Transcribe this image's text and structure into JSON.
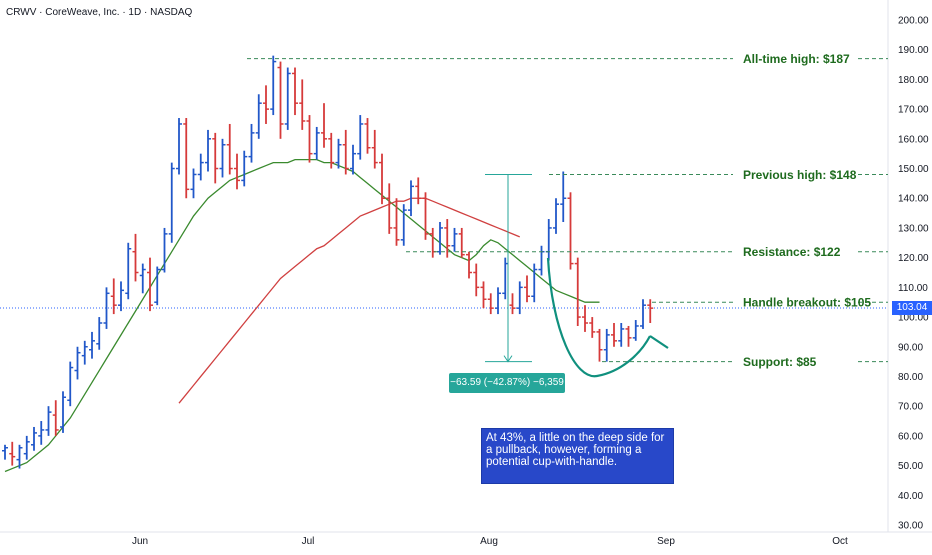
{
  "header": {
    "title": "CRWV · CoreWeave, Inc. · 1D · NASDAQ"
  },
  "colors": {
    "bar_up": "#2157c9",
    "bar_down": "#d63a3a",
    "ma_fast": "#3a8a2e",
    "ma_slow": "#d04040",
    "cup": "#10907e",
    "annotation_text": "#1e6b1e",
    "guide_dashed": "#3a8a5a",
    "last_price": "#2962ff",
    "measure": "#26a69a",
    "note_bg": "#2848c9"
  },
  "chart_data": {
    "type": "ohlc",
    "x_axis": {
      "labels": [
        "Jun",
        "Jul",
        "Aug",
        "Sep",
        "Oct"
      ]
    },
    "y_axis": {
      "range": [
        30,
        200
      ],
      "ticks": [
        "200.00",
        "190.00",
        "180.00",
        "170.00",
        "160.00",
        "150.00",
        "140.00",
        "130.00",
        "120.00",
        "110.00",
        "100.00",
        "90.00",
        "80.00",
        "70.00",
        "60.00",
        "50.00",
        "40.00",
        "30.00"
      ]
    },
    "last_price": {
      "value": 103.04,
      "label": "103.04"
    },
    "bars": [
      {
        "o": 55,
        "h": 57,
        "l": 52,
        "c": 56
      },
      {
        "o": 54,
        "h": 58,
        "l": 50,
        "c": 53
      },
      {
        "o": 52,
        "h": 57,
        "l": 49,
        "c": 56
      },
      {
        "o": 54,
        "h": 60,
        "l": 52,
        "c": 58
      },
      {
        "o": 57,
        "h": 63,
        "l": 55,
        "c": 61
      },
      {
        "o": 60,
        "h": 65,
        "l": 57,
        "c": 62
      },
      {
        "o": 62,
        "h": 70,
        "l": 60,
        "c": 68
      },
      {
        "o": 67,
        "h": 72,
        "l": 60,
        "c": 62
      },
      {
        "o": 63,
        "h": 75,
        "l": 61,
        "c": 73
      },
      {
        "o": 72,
        "h": 85,
        "l": 70,
        "c": 83
      },
      {
        "o": 82,
        "h": 90,
        "l": 79,
        "c": 88
      },
      {
        "o": 87,
        "h": 92,
        "l": 84,
        "c": 90
      },
      {
        "o": 89,
        "h": 95,
        "l": 86,
        "c": 92
      },
      {
        "o": 91,
        "h": 100,
        "l": 89,
        "c": 98
      },
      {
        "o": 98,
        "h": 110,
        "l": 96,
        "c": 108
      },
      {
        "o": 107,
        "h": 113,
        "l": 101,
        "c": 104
      },
      {
        "o": 104,
        "h": 112,
        "l": 102,
        "c": 109
      },
      {
        "o": 108,
        "h": 125,
        "l": 106,
        "c": 123
      },
      {
        "o": 122,
        "h": 128,
        "l": 112,
        "c": 115
      },
      {
        "o": 114,
        "h": 118,
        "l": 108,
        "c": 116
      },
      {
        "o": 115,
        "h": 120,
        "l": 102,
        "c": 104
      },
      {
        "o": 105,
        "h": 117,
        "l": 104,
        "c": 116
      },
      {
        "o": 116,
        "h": 130,
        "l": 115,
        "c": 128
      },
      {
        "o": 128,
        "h": 152,
        "l": 125,
        "c": 150
      },
      {
        "o": 150,
        "h": 167,
        "l": 148,
        "c": 165
      },
      {
        "o": 165,
        "h": 167,
        "l": 140,
        "c": 143
      },
      {
        "o": 143,
        "h": 150,
        "l": 140,
        "c": 148
      },
      {
        "o": 148,
        "h": 155,
        "l": 146,
        "c": 152
      },
      {
        "o": 152,
        "h": 163,
        "l": 149,
        "c": 160
      },
      {
        "o": 160,
        "h": 162,
        "l": 145,
        "c": 150
      },
      {
        "o": 150,
        "h": 160,
        "l": 147,
        "c": 158
      },
      {
        "o": 158,
        "h": 165,
        "l": 148,
        "c": 150
      },
      {
        "o": 150,
        "h": 155,
        "l": 143,
        "c": 146
      },
      {
        "o": 146,
        "h": 156,
        "l": 144,
        "c": 154
      },
      {
        "o": 154,
        "h": 165,
        "l": 152,
        "c": 162
      },
      {
        "o": 162,
        "h": 175,
        "l": 160,
        "c": 172
      },
      {
        "o": 172,
        "h": 178,
        "l": 165,
        "c": 170
      },
      {
        "o": 170,
        "h": 188,
        "l": 168,
        "c": 186
      },
      {
        "o": 184,
        "h": 186,
        "l": 160,
        "c": 165
      },
      {
        "o": 165,
        "h": 184,
        "l": 163,
        "c": 182
      },
      {
        "o": 182,
        "h": 184,
        "l": 168,
        "c": 172
      },
      {
        "o": 172,
        "h": 180,
        "l": 163,
        "c": 166
      },
      {
        "o": 166,
        "h": 168,
        "l": 152,
        "c": 155
      },
      {
        "o": 155,
        "h": 164,
        "l": 153,
        "c": 162
      },
      {
        "o": 162,
        "h": 172,
        "l": 157,
        "c": 160
      },
      {
        "o": 160,
        "h": 162,
        "l": 150,
        "c": 152
      },
      {
        "o": 152,
        "h": 160,
        "l": 150,
        "c": 158
      },
      {
        "o": 158,
        "h": 163,
        "l": 148,
        "c": 150
      },
      {
        "o": 150,
        "h": 158,
        "l": 148,
        "c": 155
      },
      {
        "o": 155,
        "h": 168,
        "l": 153,
        "c": 165
      },
      {
        "o": 165,
        "h": 167,
        "l": 155,
        "c": 157
      },
      {
        "o": 157,
        "h": 163,
        "l": 150,
        "c": 152
      },
      {
        "o": 152,
        "h": 155,
        "l": 138,
        "c": 140
      },
      {
        "o": 140,
        "h": 145,
        "l": 128,
        "c": 130
      },
      {
        "o": 130,
        "h": 140,
        "l": 124,
        "c": 126
      },
      {
        "o": 126,
        "h": 138,
        "l": 124,
        "c": 136
      },
      {
        "o": 136,
        "h": 146,
        "l": 134,
        "c": 144
      },
      {
        "o": 144,
        "h": 147,
        "l": 138,
        "c": 140
      },
      {
        "o": 140,
        "h": 142,
        "l": 126,
        "c": 128
      },
      {
        "o": 128,
        "h": 130,
        "l": 120,
        "c": 122
      },
      {
        "o": 122,
        "h": 132,
        "l": 121,
        "c": 130
      },
      {
        "o": 130,
        "h": 133,
        "l": 120,
        "c": 124
      },
      {
        "o": 124,
        "h": 130,
        "l": 122,
        "c": 128
      },
      {
        "o": 128,
        "h": 130,
        "l": 120,
        "c": 121
      },
      {
        "o": 121,
        "h": 122,
        "l": 113,
        "c": 115
      },
      {
        "o": 115,
        "h": 118,
        "l": 107,
        "c": 110
      },
      {
        "o": 110,
        "h": 112,
        "l": 103,
        "c": 106
      },
      {
        "o": 106,
        "h": 108,
        "l": 101,
        "c": 103
      },
      {
        "o": 103,
        "h": 110,
        "l": 101,
        "c": 108
      },
      {
        "o": 108,
        "h": 120,
        "l": 106,
        "c": 118
      },
      {
        "o": 104,
        "h": 108,
        "l": 101,
        "c": 103
      },
      {
        "o": 103,
        "h": 112,
        "l": 101,
        "c": 110
      },
      {
        "o": 110,
        "h": 114,
        "l": 105,
        "c": 107
      },
      {
        "o": 107,
        "h": 118,
        "l": 105,
        "c": 116
      },
      {
        "o": 116,
        "h": 124,
        "l": 114,
        "c": 122
      },
      {
        "o": 122,
        "h": 133,
        "l": 119,
        "c": 130
      },
      {
        "o": 130,
        "h": 140,
        "l": 128,
        "c": 138
      },
      {
        "o": 138,
        "h": 149,
        "l": 132,
        "c": 140
      },
      {
        "o": 140,
        "h": 142,
        "l": 116,
        "c": 118
      },
      {
        "o": 118,
        "h": 120,
        "l": 97,
        "c": 100
      },
      {
        "o": 100,
        "h": 104,
        "l": 95,
        "c": 98
      },
      {
        "o": 98,
        "h": 100,
        "l": 93,
        "c": 95
      },
      {
        "o": 95,
        "h": 96,
        "l": 85,
        "c": 89
      },
      {
        "o": 89,
        "h": 96,
        "l": 85,
        "c": 94
      },
      {
        "o": 94,
        "h": 98,
        "l": 90,
        "c": 92
      },
      {
        "o": 92,
        "h": 98,
        "l": 90,
        "c": 96
      },
      {
        "o": 96,
        "h": 97,
        "l": 90,
        "c": 93
      },
      {
        "o": 93,
        "h": 99,
        "l": 92,
        "c": 97
      },
      {
        "o": 97,
        "h": 106,
        "l": 96,
        "c": 104
      },
      {
        "o": 104,
        "h": 106,
        "l": 98,
        "c": 103
      }
    ],
    "ma_fast": [
      48,
      49,
      50,
      51,
      53,
      55,
      57,
      60,
      63,
      66,
      70,
      74,
      78,
      82,
      86,
      90,
      94,
      98,
      102,
      106,
      110,
      114,
      118,
      122,
      126,
      130,
      134,
      137,
      140,
      142,
      144,
      146,
      147,
      148,
      149,
      150,
      151,
      152,
      152,
      152,
      153,
      153,
      153,
      153,
      152,
      152,
      151,
      150,
      149,
      147,
      145,
      143,
      141,
      139,
      137,
      135,
      133,
      131,
      129,
      127,
      125,
      123,
      121,
      120,
      119,
      121,
      124,
      126,
      125,
      123,
      121,
      119,
      117,
      115,
      113,
      111,
      109,
      108,
      107,
      106,
      105,
      105,
      105
    ],
    "ma_slow": [
      71,
      74,
      77,
      80,
      83,
      86,
      89,
      92,
      95,
      98,
      101,
      104,
      107,
      110,
      113,
      115,
      117,
      119,
      121,
      123,
      124,
      126,
      128,
      130,
      132,
      134,
      135,
      136,
      137,
      138,
      139,
      139,
      140,
      140,
      140,
      139,
      138,
      137,
      136,
      135,
      134,
      133,
      132,
      131,
      130,
      129,
      128,
      127
    ],
    "annotations": [
      {
        "label": "All-time high: $187",
        "value": 187
      },
      {
        "label": "Previous high: $148",
        "value": 148
      },
      {
        "label": "Resistance: $122",
        "value": 122
      },
      {
        "label": "Handle breakout: $105",
        "value": 105
      },
      {
        "label": "Support: $85",
        "value": 85
      }
    ],
    "measure": {
      "from": 148,
      "to": 85,
      "label": "−63.59 (−42.87%) −6,359"
    }
  },
  "note": {
    "text": "At 43%, a little on the deep side for a pullback, however, forming a potential cup-with-handle."
  }
}
